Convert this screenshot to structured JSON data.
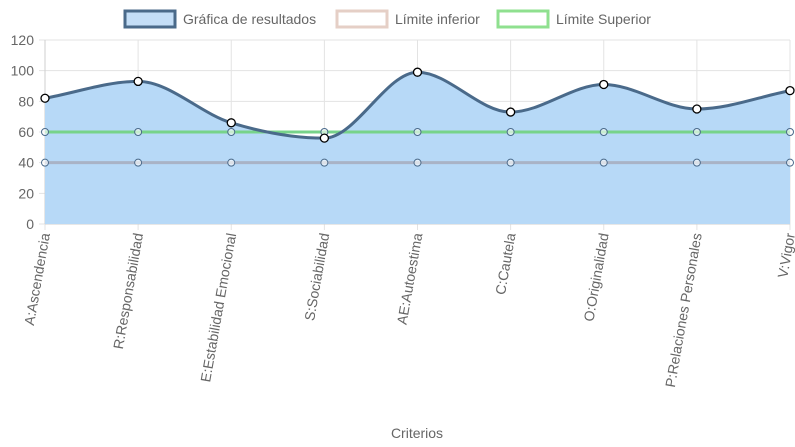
{
  "chart_data": {
    "type": "line",
    "title": "",
    "xlabel": "Criterios",
    "ylabel": "",
    "ylim": [
      0,
      120
    ],
    "yticks": [
      0,
      20,
      40,
      60,
      80,
      100,
      120
    ],
    "grid": true,
    "legend_position": "top",
    "categories": [
      "A:Ascendencia",
      "R:Responsabilidad",
      "E:Estabilidad Emocional",
      "S:Sociabilidad",
      "AE:Autoestima",
      "C:Cautela",
      "O:Originalidad",
      "P:Relaciones Personales",
      "V:Vigor"
    ],
    "series": [
      {
        "name": "Gráfica de resultados",
        "values": [
          82,
          93,
          66,
          56,
          99,
          73,
          91,
          75,
          87
        ],
        "line_color": "#4a6a8a",
        "fill_color": "#b7d9f7",
        "legend_fill": "#c4def7",
        "legend_border": "#4a6a8a"
      },
      {
        "name": "Límite inferior",
        "values": [
          40,
          40,
          40,
          40,
          40,
          40,
          40,
          40,
          40
        ],
        "line_color": "#a9b3c6",
        "legend_fill": "#ffffff",
        "legend_border": "#e5cfc6"
      },
      {
        "name": "Límite Superior",
        "values": [
          60,
          60,
          60,
          60,
          60,
          60,
          60,
          60,
          60
        ],
        "line_color": "#77d38a",
        "legend_fill": "#ffffff",
        "legend_border": "#8fe08f"
      }
    ]
  }
}
